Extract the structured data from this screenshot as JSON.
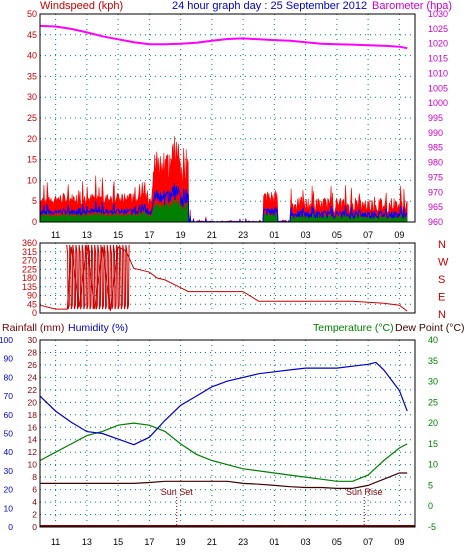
{
  "header": {
    "left_label": "Windspeed (kph)",
    "center_label": "24 hour graph day : 25 September 2012",
    "right_label": "Barometer (hpa)"
  },
  "colors": {
    "windspeed": "#ff0000",
    "gust": "#ff0000",
    "wind_avg": "#0000ff",
    "wind_low": "#008000",
    "barometer": "#ff00ff",
    "direction": "#cc0000",
    "rain": "#800000",
    "humidity": "#0000cc",
    "temperature": "#008000",
    "dewpoint": "#400000",
    "grid": "#008080",
    "axis_left": "#cc0000",
    "axis_right_top": "#cc00cc",
    "axis_blue": "#0000cc",
    "axis_green": "#008000"
  },
  "x_ticks": [
    "11",
    "13",
    "15",
    "17",
    "19",
    "21",
    "23",
    "01",
    "03",
    "05",
    "07",
    "09"
  ],
  "chart_data": [
    {
      "type": "area",
      "id": "wind_barometer",
      "ylabel_left": "Windspeed (kph)",
      "ylabel_right": "Barometer (hpa)",
      "y_left_ticks": [
        0,
        5,
        10,
        15,
        20,
        25,
        30,
        35,
        40,
        45,
        50
      ],
      "y_left_range": [
        0,
        50
      ],
      "y_right_ticks": [
        960,
        965,
        970,
        975,
        980,
        985,
        990,
        995,
        1000,
        1005,
        1010,
        1015,
        1020,
        1025,
        1030
      ],
      "y_right_range": [
        960,
        1030
      ],
      "wind_max_segments": [
        {
          "x_start": "10:00",
          "x_end": "18:00",
          "level": 5
        },
        {
          "x_start": "16:00",
          "x_end": "19:30",
          "level": 20
        },
        {
          "x_start": "00:00",
          "x_end": "02:00",
          "level": 5
        },
        {
          "x_start": "02:30",
          "x_end": "09:30",
          "level": 6
        }
      ],
      "wind_gust_peak": 24,
      "barometer": {
        "x": [
          "10:00",
          "11:00",
          "12:00",
          "13:00",
          "14:00",
          "15:00",
          "16:00",
          "17:00",
          "18:00",
          "19:00",
          "20:00",
          "21:00",
          "22:00",
          "23:00",
          "00:00",
          "01:00",
          "02:00",
          "03:00",
          "04:00",
          "05:00",
          "06:00",
          "07:00",
          "08:00",
          "09:00",
          "09:30"
        ],
        "y": [
          1026,
          1025.8,
          1025,
          1023.8,
          1022.5,
          1021.5,
          1020.5,
          1019.8,
          1019.8,
          1020,
          1020.3,
          1021,
          1021.6,
          1021.8,
          1021.5,
          1021.2,
          1021,
          1020.5,
          1020,
          1019.8,
          1019.7,
          1019.5,
          1019.3,
          1019,
          1018.5
        ]
      }
    },
    {
      "type": "line",
      "id": "wind_direction",
      "y_left_ticks": [
        0,
        45,
        90,
        135,
        180,
        225,
        270,
        315,
        360
      ],
      "y_left_range": [
        0,
        360
      ],
      "y_right_ticks": [
        "N",
        "W",
        "S",
        "E",
        "N"
      ],
      "direction": {
        "x": [
          "10:00",
          "11:00",
          "11:45",
          "12:00",
          "12:30",
          "13:00",
          "13:30",
          "14:00",
          "14:30",
          "15:00",
          "15:30",
          "16:00",
          "16:30",
          "17:00",
          "17:30",
          "18:00",
          "18:30",
          "19:00",
          "19:30",
          "20:00",
          "21:00",
          "22:00",
          "23:00",
          "00:00",
          "01:00",
          "02:00",
          "03:00",
          "04:00",
          "05:00",
          "06:00",
          "07:00",
          "08:00",
          "09:00",
          "09:30"
        ],
        "y": [
          40,
          20,
          20,
          340,
          30,
          350,
          20,
          340,
          10,
          340,
          320,
          230,
          220,
          210,
          180,
          170,
          150,
          130,
          110,
          110,
          110,
          110,
          110,
          60,
          60,
          60,
          60,
          60,
          60,
          60,
          55,
          50,
          40,
          10
        ]
      }
    },
    {
      "type": "line",
      "id": "temp_humidity_rain",
      "labels": {
        "rainfall": "Rainfall (mm)",
        "humidity": "Humidity (%)",
        "temperature": "Temperature (°C)",
        "dewpoint": "Dew Point (°C)"
      },
      "y_humidity_ticks": [
        0,
        10,
        20,
        30,
        40,
        50,
        60,
        70,
        80,
        90,
        100
      ],
      "y_rain_ticks": [
        0,
        2,
        4,
        6,
        8,
        10,
        12,
        14,
        16,
        18,
        20,
        22,
        24,
        26,
        28,
        30
      ],
      "y_temp_ticks": [
        -5,
        0,
        5,
        10,
        15,
        20,
        25,
        30,
        35,
        40
      ],
      "y_temp_range": [
        -5,
        40
      ],
      "annotations": [
        {
          "text": "Sun Set",
          "x": "18:45"
        },
        {
          "text": "Sun Rise",
          "x": "06:45"
        }
      ],
      "humidity": {
        "x": [
          "10:00",
          "11:00",
          "12:00",
          "13:00",
          "14:00",
          "15:00",
          "16:00",
          "17:00",
          "18:00",
          "19:00",
          "20:00",
          "21:00",
          "22:00",
          "23:00",
          "00:00",
          "01:00",
          "02:00",
          "03:00",
          "04:00",
          "05:00",
          "06:00",
          "07:00",
          "07:30",
          "08:00",
          "09:00",
          "09:30"
        ],
        "y": [
          70,
          62,
          56,
          51,
          50,
          47,
          44,
          48,
          57,
          65,
          70,
          75,
          78,
          80,
          82,
          83,
          84,
          85,
          85,
          85,
          86,
          87,
          88,
          84,
          73,
          62
        ]
      },
      "temperature": {
        "x": [
          "10:00",
          "11:00",
          "12:00",
          "13:00",
          "14:00",
          "15:00",
          "16:00",
          "17:00",
          "18:00",
          "19:00",
          "20:00",
          "21:00",
          "22:00",
          "23:00",
          "00:00",
          "01:00",
          "02:00",
          "03:00",
          "04:00",
          "05:00",
          "06:00",
          "07:00",
          "08:00",
          "09:00",
          "09:30"
        ],
        "y": [
          11,
          13,
          15,
          17,
          18,
          19.5,
          20,
          19.5,
          18,
          15,
          12.5,
          11,
          10,
          9,
          8.5,
          8,
          7.5,
          7,
          6.5,
          6,
          6,
          7.5,
          11,
          14,
          15
        ]
      },
      "dewpoint": {
        "x": [
          "10:00",
          "11:00",
          "12:00",
          "13:00",
          "14:00",
          "15:00",
          "16:00",
          "17:00",
          "18:00",
          "19:00",
          "20:00",
          "21:00",
          "22:00",
          "23:00",
          "00:00",
          "01:00",
          "02:00",
          "03:00",
          "04:00",
          "05:00",
          "06:00",
          "07:00",
          "08:00",
          "09:00",
          "09:30"
        ],
        "y": [
          5.5,
          5.5,
          5.5,
          5.5,
          5.5,
          5.5,
          5.5,
          5.7,
          6,
          6,
          6,
          6,
          6,
          5.5,
          5.3,
          5,
          4.7,
          4.5,
          4.5,
          4.3,
          4.3,
          5,
          6.5,
          8,
          8
        ]
      },
      "rainfall": {
        "x": [
          "10:00",
          "09:30"
        ],
        "y": [
          0,
          0
        ]
      }
    }
  ]
}
